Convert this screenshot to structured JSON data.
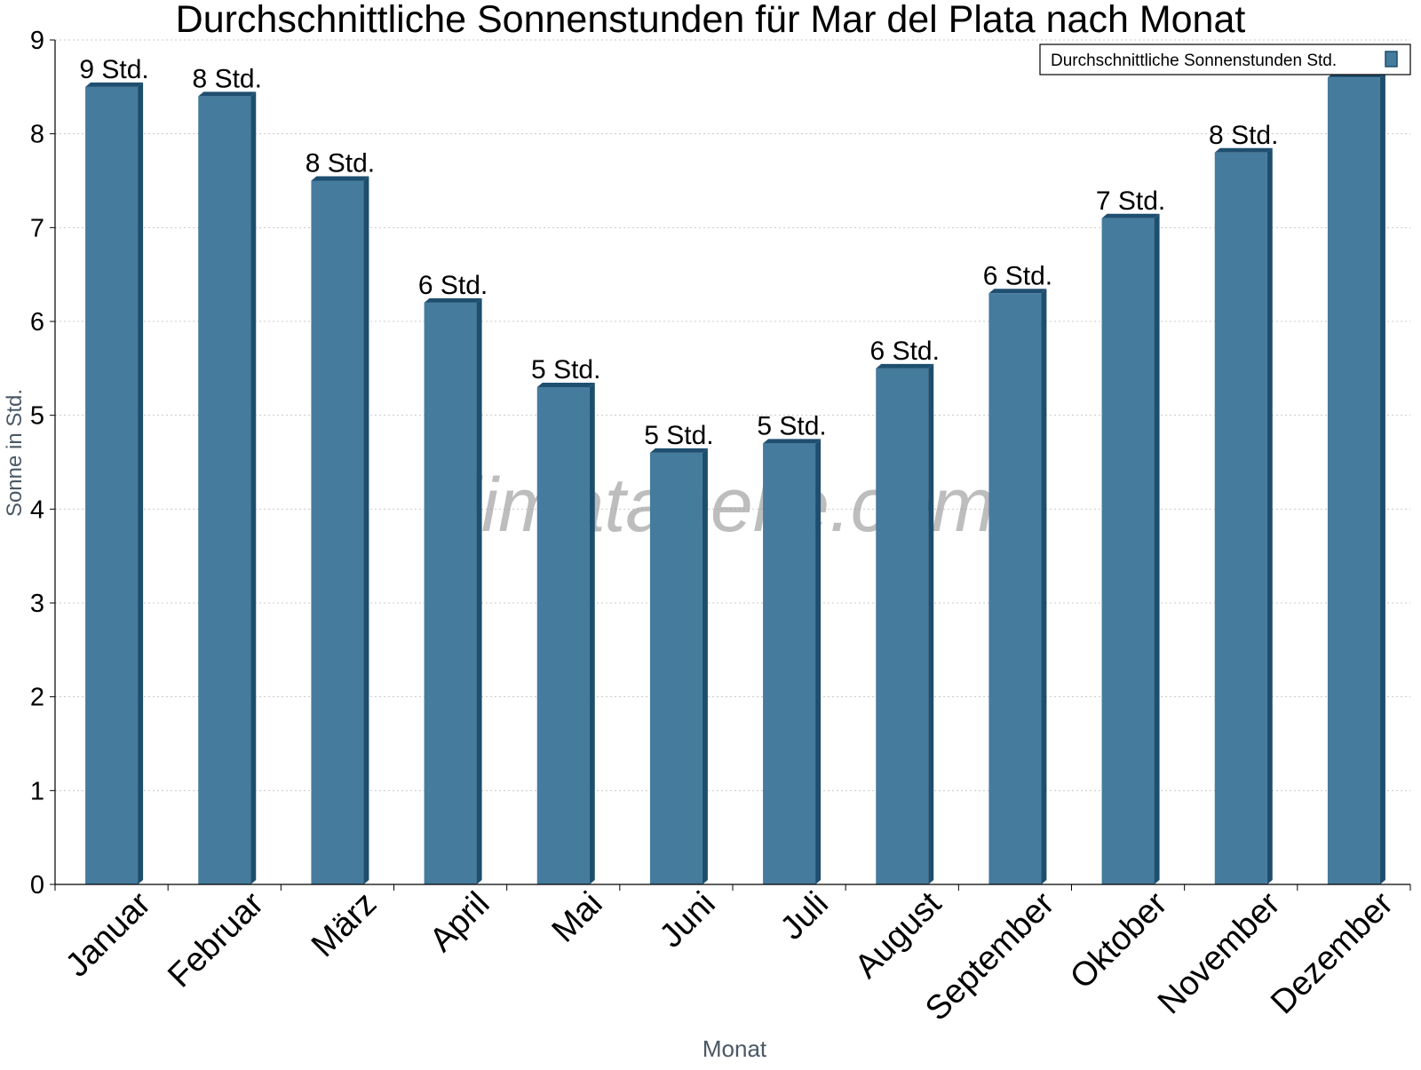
{
  "chart_data": {
    "type": "bar",
    "title": "Durchschnittliche Sonnenstunden für Mar del Plata nach Monat",
    "xlabel": "Monat",
    "ylabel": "Sonne in Std.",
    "ylim": [
      0,
      9
    ],
    "yticks": [
      "0",
      "1",
      "2",
      "3",
      "4",
      "5",
      "6",
      "7",
      "8",
      "9"
    ],
    "grid": true,
    "legend_position": "top-right",
    "watermark": "klimatabelle.com",
    "categories": [
      "Januar",
      "Februar",
      "März",
      "April",
      "Mai",
      "Juni",
      "Juli",
      "August",
      "September",
      "Oktober",
      "November",
      "Dezember"
    ],
    "series": [
      {
        "name": "Durchschnittliche Sonnenstunden Std.",
        "values": [
          8.5,
          8.4,
          7.5,
          6.2,
          5.3,
          4.6,
          4.7,
          5.5,
          6.3,
          7.1,
          7.8,
          8.6
        ],
        "data_labels": [
          "9 Std.",
          "8 Std.",
          "8 Std.",
          "6 Std.",
          "5 Std.",
          "5 Std.",
          "5 Std.",
          "6 Std.",
          "6 Std.",
          "7 Std.",
          "8 Std.",
          ""
        ]
      }
    ],
    "colors": {
      "bar_front": "#457b9d",
      "bar_side": "#1d4e6e",
      "bar_top": "#1f4f70",
      "axis": "#000000",
      "grid": "#c8c8c8",
      "axis_title": "#4a5866",
      "watermark": "#9a9a9a"
    }
  }
}
